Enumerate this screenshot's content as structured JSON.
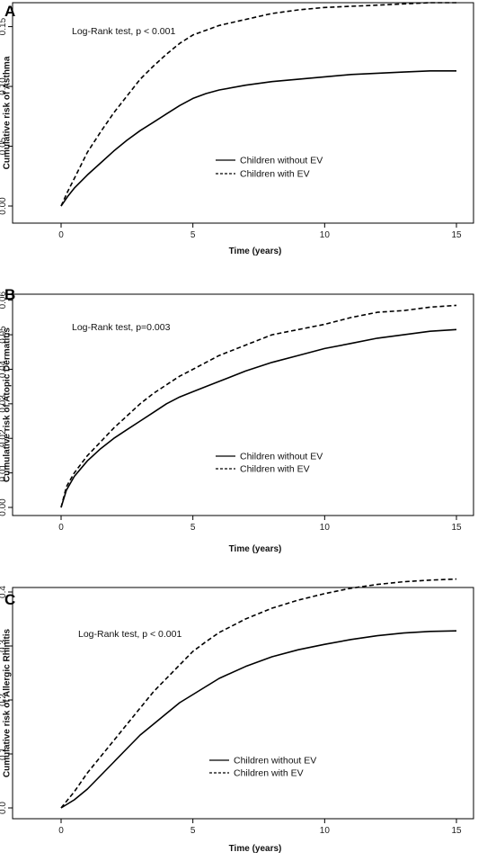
{
  "chart_data": [
    {
      "panel": "A",
      "type": "line",
      "xlabel": "Time (years)",
      "ylabel": "Cumulative risk of Asthma",
      "annotation": "Log-Rank test, p < 0.001",
      "xlim": [
        0,
        15
      ],
      "ylim": [
        0,
        0.17
      ],
      "xticks": [
        0,
        5,
        10,
        15
      ],
      "yticks": [
        0.0,
        0.05,
        0.1,
        0.15
      ],
      "ytick_labels": [
        "0.00",
        "0.05",
        "0.10",
        "0.15"
      ],
      "grid": false,
      "legend_position": "center-right",
      "series": [
        {
          "name": "Children without EV",
          "style": "solid",
          "x": [
            0,
            0.25,
            0.5,
            1,
            1.5,
            2,
            2.5,
            3,
            3.5,
            4,
            4.5,
            5,
            5.5,
            6,
            7,
            8,
            9,
            10,
            11,
            12,
            13,
            14,
            15
          ],
          "y": [
            0.0,
            0.008,
            0.015,
            0.026,
            0.036,
            0.046,
            0.055,
            0.063,
            0.07,
            0.077,
            0.084,
            0.09,
            0.094,
            0.097,
            0.101,
            0.104,
            0.106,
            0.108,
            0.11,
            0.111,
            0.112,
            0.113,
            0.113
          ]
        },
        {
          "name": "Children with EV",
          "style": "dashed",
          "x": [
            0,
            0.25,
            0.5,
            1,
            1.5,
            2,
            2.5,
            3,
            3.5,
            4,
            4.5,
            5,
            5.5,
            6,
            7,
            8,
            9,
            10,
            11,
            12,
            13,
            14,
            15
          ],
          "y": [
            0.0,
            0.012,
            0.023,
            0.045,
            0.062,
            0.078,
            0.092,
            0.106,
            0.117,
            0.127,
            0.136,
            0.143,
            0.147,
            0.151,
            0.156,
            0.161,
            0.164,
            0.166,
            0.167,
            0.168,
            0.169,
            0.17,
            0.17
          ]
        }
      ]
    },
    {
      "panel": "B",
      "type": "line",
      "xlabel": "Time (years)",
      "ylabel": "Cumulative risk of Atopic Dermatitis",
      "annotation": "Log-Rank test, p=0.003",
      "xlim": [
        0,
        15
      ],
      "ylim": [
        0,
        0.062
      ],
      "xticks": [
        0,
        5,
        10,
        15
      ],
      "yticks": [
        0.0,
        0.01,
        0.02,
        0.03,
        0.04,
        0.05,
        0.06
      ],
      "ytick_labels": [
        "0.00",
        "0.01",
        "0.02",
        "0.03",
        "0.04",
        "0.05",
        "0.06"
      ],
      "grid": false,
      "legend_position": "center-right",
      "series": [
        {
          "name": "Children without EV",
          "style": "solid",
          "x": [
            0,
            0.2,
            0.5,
            1,
            1.5,
            2,
            2.5,
            3,
            3.5,
            4,
            4.5,
            5,
            5.5,
            6,
            7,
            8,
            9,
            10,
            11,
            12,
            13,
            14,
            15
          ],
          "y": [
            0.0,
            0.005,
            0.009,
            0.0135,
            0.017,
            0.02,
            0.0225,
            0.025,
            0.0275,
            0.03,
            0.032,
            0.0335,
            0.035,
            0.0365,
            0.0395,
            0.042,
            0.044,
            0.046,
            0.0475,
            0.049,
            0.05,
            0.051,
            0.0515
          ]
        },
        {
          "name": "Children with EV",
          "style": "dashed",
          "x": [
            0,
            0.2,
            0.5,
            1,
            1.5,
            2,
            2.5,
            3,
            3.5,
            4,
            4.5,
            5,
            5.5,
            6,
            7,
            8,
            9,
            10,
            11,
            12,
            13,
            14,
            15
          ],
          "y": [
            0.0,
            0.006,
            0.01,
            0.015,
            0.019,
            0.023,
            0.0265,
            0.03,
            0.033,
            0.0355,
            0.038,
            0.04,
            0.042,
            0.044,
            0.047,
            0.05,
            0.0515,
            0.053,
            0.055,
            0.0565,
            0.057,
            0.058,
            0.0585
          ]
        }
      ]
    },
    {
      "panel": "C",
      "type": "line",
      "xlabel": "Time (years)",
      "ylabel": "Cumulative risk of Allergic Rhinitis",
      "annotation": "Log-Rank test, p < 0.001",
      "xlim": [
        0,
        15
      ],
      "ylim": [
        0,
        0.43
      ],
      "xticks": [
        0,
        5,
        10,
        15
      ],
      "yticks": [
        0.0,
        0.1,
        0.2,
        0.3,
        0.4
      ],
      "ytick_labels": [
        "0.0",
        "0.1",
        "0.2",
        "0.3",
        "0.4"
      ],
      "grid": false,
      "legend_position": "bottom-right",
      "series": [
        {
          "name": "Children without EV",
          "style": "solid",
          "x": [
            0,
            0.5,
            1,
            1.5,
            2,
            2.5,
            3,
            3.5,
            4,
            4.5,
            5,
            5.5,
            6,
            7,
            8,
            9,
            10,
            11,
            12,
            13,
            14,
            15
          ],
          "y": [
            0.0,
            0.015,
            0.035,
            0.06,
            0.085,
            0.11,
            0.135,
            0.155,
            0.175,
            0.195,
            0.21,
            0.225,
            0.24,
            0.262,
            0.28,
            0.293,
            0.303,
            0.312,
            0.319,
            0.324,
            0.327,
            0.328
          ]
        },
        {
          "name": "Children with EV",
          "style": "dashed",
          "x": [
            0,
            0.5,
            1,
            1.5,
            2,
            2.5,
            3,
            3.5,
            4,
            4.5,
            5,
            5.5,
            6,
            7,
            8,
            9,
            10,
            11,
            12,
            13,
            14,
            15
          ],
          "y": [
            0.0,
            0.03,
            0.065,
            0.095,
            0.125,
            0.155,
            0.185,
            0.215,
            0.24,
            0.265,
            0.29,
            0.308,
            0.325,
            0.35,
            0.37,
            0.385,
            0.397,
            0.407,
            0.414,
            0.419,
            0.422,
            0.424
          ]
        }
      ]
    }
  ]
}
